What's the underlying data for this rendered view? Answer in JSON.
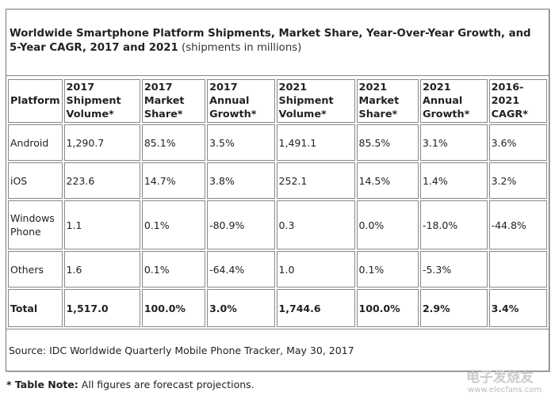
{
  "title": {
    "bold": "Worldwide Smartphone Platform Shipments, Market Share, Year-Over-Year Growth, and 5-Year CAGR, 2017 and 2021",
    "sub": "(shipments in millions)"
  },
  "headers": [
    [
      "Platform"
    ],
    [
      "2017",
      "Shipment",
      "Volume*"
    ],
    [
      "2017",
      "Market",
      "Share*"
    ],
    [
      "2017",
      "Annual",
      "Growth*"
    ],
    [
      "2021",
      "Shipment",
      "Volume*"
    ],
    [
      "2021",
      "Market",
      "Share*"
    ],
    [
      "2021",
      "Annual",
      "Growth*"
    ],
    [
      "2016-",
      "2021",
      "CAGR*"
    ]
  ],
  "rows": [
    [
      "Android",
      "1,290.7",
      "85.1%",
      "3.5%",
      "1,491.1",
      "85.5%",
      "3.1%",
      "3.6%"
    ],
    [
      "iOS",
      "223.6",
      "14.7%",
      "3.8%",
      "252.1",
      "14.5%",
      "1.4%",
      "3.2%"
    ],
    [
      "Windows Phone",
      "1.1",
      "0.1%",
      "-80.9%",
      "0.3",
      "0.0%",
      "-18.0%",
      "-44.8%"
    ],
    [
      "Others",
      "1.6",
      "0.1%",
      "-64.4%",
      "1.0",
      "0.1%",
      "-5.3%",
      ""
    ]
  ],
  "total": [
    "Total",
    "1,517.0",
    "100.0%",
    "3.0%",
    "1,744.6",
    "100.0%",
    "2.9%",
    "3.4%"
  ],
  "source": "Source: IDC Worldwide Quarterly Mobile Phone Tracker, May 30, 2017",
  "note": {
    "label": "* Table Note:",
    "text": "All figures are forecast projections."
  },
  "watermark": {
    "cn": "电子发烧友",
    "url": "www.elecfans.com"
  }
}
